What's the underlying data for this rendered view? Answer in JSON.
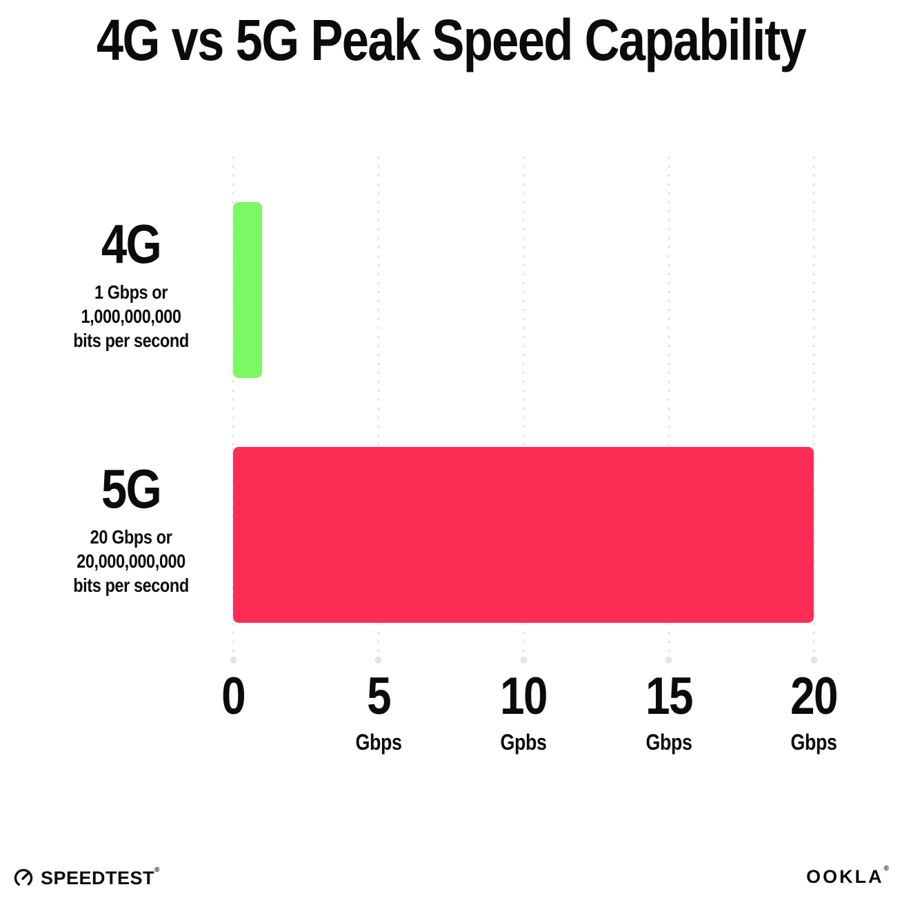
{
  "title": "4G vs 5G Peak Speed Capability",
  "chart_data": {
    "type": "bar",
    "orientation": "horizontal",
    "title": "4G vs 5G Peak Speed Capability",
    "xlabel": "",
    "ylabel": "",
    "xlim": [
      0,
      20
    ],
    "grid": "dotted vertical gridlines at 0, 5, 10, 15, 20 Gbps, each ending in a larger dot at the bottom",
    "legend": "none",
    "categories": [
      "4G",
      "5G"
    ],
    "values": [
      1,
      20
    ],
    "series": [
      {
        "name": "4G",
        "value_gbps": 1,
        "color": "#7bf964",
        "sublabel_lines": [
          "1 Gbps or",
          "1,000,000,000",
          "bits per second"
        ]
      },
      {
        "name": "5G",
        "value_gbps": 20,
        "color": "#fd2d55",
        "sublabel_lines": [
          "20 Gbps or",
          "20,000,000,000",
          "bits per second"
        ]
      }
    ],
    "x_ticks": [
      {
        "value": 0,
        "label": "0",
        "unit": ""
      },
      {
        "value": 5,
        "label": "5",
        "unit": "Gbps"
      },
      {
        "value": 10,
        "label": "10",
        "unit": "Gpbs"
      },
      {
        "value": 15,
        "label": "15",
        "unit": "Gbps"
      },
      {
        "value": 20,
        "label": "20",
        "unit": "Gbps"
      }
    ]
  },
  "footer": {
    "speedtest_label": "SPEEDTEST",
    "speedtest_trademark": "®",
    "ookla_label": "OOKLA",
    "ookla_trademark": "®"
  },
  "colors": {
    "bar_4g": "#7bf964",
    "bar_5g": "#fd2d55",
    "grid_dot": "#e3e3ef",
    "text": "#0b0b0b",
    "background": "#ffffff"
  }
}
